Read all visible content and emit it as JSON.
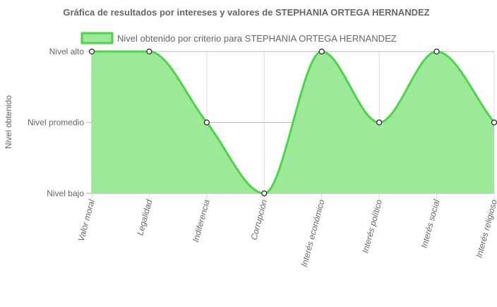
{
  "chart_data": {
    "type": "area",
    "title": "Gráfica de resultados por intereses y valores de STEPHANIA ORTEGA HERNANDEZ",
    "ylabel": "Nivel obtenido",
    "xlabel": "",
    "y_tick_labels": [
      "Nivel bajo",
      "Nivel promedio",
      "Nivel alto"
    ],
    "ylim": [
      0,
      2
    ],
    "categories": [
      "Valor moral",
      "Legalidad",
      "Indiferencia",
      "Corrupción",
      "Interés económico",
      "Interés político",
      "Interés social",
      "Interés religioso"
    ],
    "series": [
      {
        "name": "Nivel obtenido por criterio para STEPHANIA ORTEGA HERNANDEZ",
        "values": [
          2,
          2,
          1,
          0,
          2,
          1,
          2,
          1
        ]
      }
    ],
    "legend_position": "top",
    "grid": true,
    "colors": {
      "fill": "#9ce997",
      "stroke": "#4fd34a",
      "point_fill": "#ffffff",
      "point_stroke": "#222222",
      "grid": "#dddddd",
      "axis": "#aaaaaa"
    }
  }
}
